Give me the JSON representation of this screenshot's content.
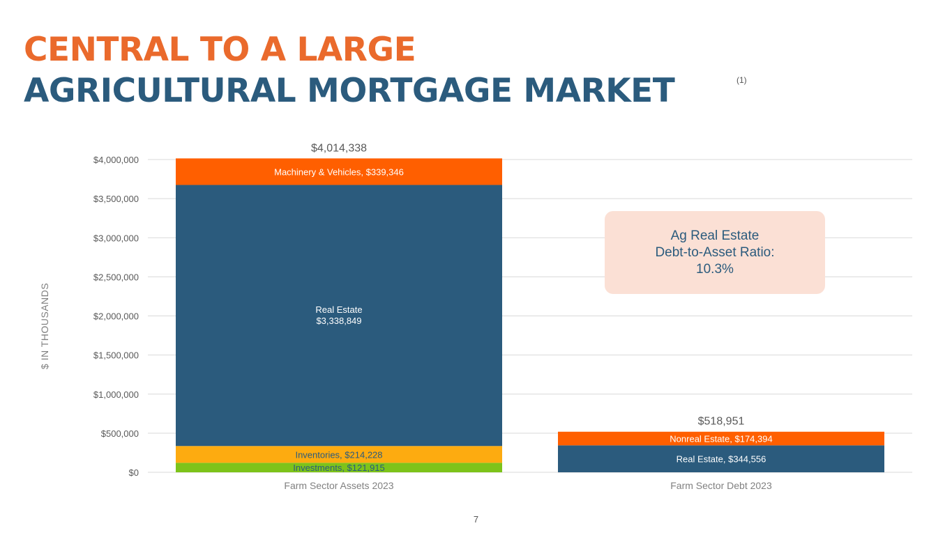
{
  "title_line1": "CENTRAL TO A LARGE",
  "title_line2": "AGRICULTURAL MORTGAGE MARKET",
  "footnote": "(1)",
  "page_number": "7",
  "ratio_box": {
    "line1": "Ag Real Estate",
    "line2": "Debt-to-Asset Ratio:",
    "line3": "10.3%"
  },
  "colors": {
    "title_orange": "#EA6A2C",
    "title_blue": "#2B5B7D",
    "real_estate": "#2B5B7D",
    "orange_segment": "#FF5F00",
    "inventories": "#FDAB10",
    "investments": "#7DC31A",
    "ratio_box_bg": "#FBE0D5"
  },
  "chart_data": {
    "type": "bar",
    "stacked": true,
    "ylabel": "$ IN THOUSANDS",
    "ylim": [
      0,
      4000000
    ],
    "yticks": [
      0,
      500000,
      1000000,
      1500000,
      2000000,
      2500000,
      3000000,
      3500000,
      4000000
    ],
    "ytick_labels": [
      "$0",
      "$500,000",
      "$1,000,000",
      "$1,500,000",
      "$2,000,000",
      "$2,500,000",
      "$3,000,000",
      "$3,500,000",
      "$4,000,000"
    ],
    "grid": true,
    "categories": [
      "Farm Sector Assets 2023",
      "Farm Sector Debt 2023"
    ],
    "totals": [
      4014338,
      518951
    ],
    "total_labels": [
      "$4,014,338",
      "$518,951"
    ],
    "stacks": [
      [
        {
          "name": "Investments",
          "value": 121915,
          "label": "Investments, $121,915",
          "color": "#7DC31A",
          "text_color": "#2B5B7D"
        },
        {
          "name": "Inventories",
          "value": 214228,
          "label": "Inventories, $214,228",
          "color": "#FDAB10",
          "text_color": "#2B5B7D"
        },
        {
          "name": "Real Estate",
          "value": 3338849,
          "label": [
            "Real Estate",
            "$3,338,849"
          ],
          "color": "#2B5B7D",
          "text_color": "#ffffff"
        },
        {
          "name": "Machinery & Vehicles",
          "value": 339346,
          "label": "Machinery & Vehicles, $339,346",
          "color": "#FF5F00",
          "text_color": "#ffffff"
        }
      ],
      [
        {
          "name": "Real Estate",
          "value": 344556,
          "label": "Real Estate, $344,556",
          "color": "#2B5B7D",
          "text_color": "#ffffff"
        },
        {
          "name": "Nonreal Estate",
          "value": 174394,
          "label": "Nonreal Estate, $174,394",
          "color": "#FF5F00",
          "text_color": "#ffffff"
        }
      ]
    ]
  }
}
